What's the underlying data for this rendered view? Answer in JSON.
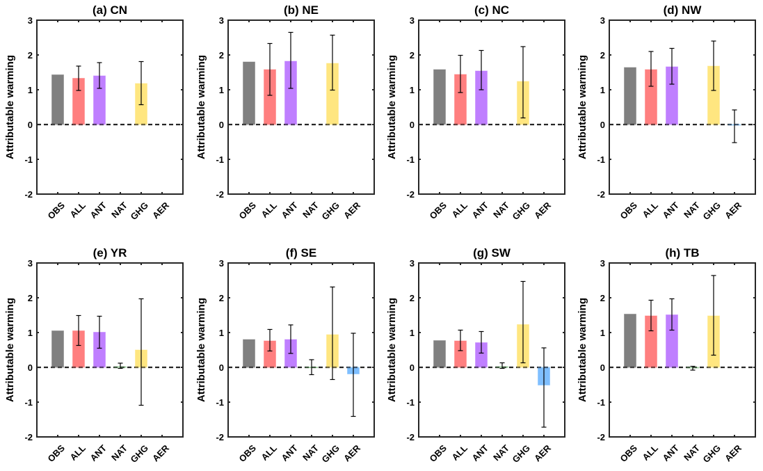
{
  "chart_data": [
    {
      "type": "bar",
      "title": "(a) CN",
      "ylabel": "Attributable warming",
      "xlabel": "",
      "categories": [
        "OBS",
        "ALL",
        "ANT",
        "NAT",
        "GHG",
        "AER"
      ],
      "values": [
        1.44,
        1.34,
        1.41,
        null,
        1.19,
        null
      ],
      "error_low": [
        null,
        0.98,
        1.04,
        null,
        0.57,
        null
      ],
      "error_high": [
        null,
        1.68,
        1.78,
        null,
        1.81,
        null
      ],
      "ylim": [
        -2,
        3
      ],
      "yticks": [
        "3",
        "2",
        "1",
        "0",
        "-1",
        "-2"
      ],
      "reference_line": 0
    },
    {
      "type": "bar",
      "title": "(b) NE",
      "ylabel": "Attributable warming",
      "xlabel": "",
      "categories": [
        "OBS",
        "ALL",
        "ANT",
        "NAT",
        "GHG",
        "AER"
      ],
      "values": [
        1.81,
        1.59,
        1.83,
        null,
        1.77,
        null
      ],
      "error_low": [
        null,
        0.84,
        1.04,
        null,
        0.99,
        null
      ],
      "error_high": [
        null,
        2.33,
        2.65,
        null,
        2.57,
        null
      ],
      "ylim": [
        -2,
        3
      ],
      "yticks": [
        "3",
        "2",
        "1",
        "0",
        "-1",
        "-2"
      ],
      "reference_line": 0
    },
    {
      "type": "bar",
      "title": "(c) NC",
      "ylabel": "Attributable warming",
      "xlabel": "",
      "categories": [
        "OBS",
        "ALL",
        "ANT",
        "NAT",
        "GHG",
        "AER"
      ],
      "values": [
        1.59,
        1.45,
        1.55,
        null,
        1.25,
        null
      ],
      "error_low": [
        null,
        0.92,
        1.0,
        null,
        0.19,
        null
      ],
      "error_high": [
        null,
        1.99,
        2.13,
        null,
        2.24,
        null
      ],
      "ylim": [
        -2,
        3
      ],
      "yticks": [
        "3",
        "2",
        "1",
        "0",
        "-1",
        "-2"
      ],
      "reference_line": 0
    },
    {
      "type": "bar",
      "title": "(d) NW",
      "ylabel": "Attributable warming",
      "xlabel": "",
      "categories": [
        "OBS",
        "ALL",
        "ANT",
        "NAT",
        "GHG",
        "AER"
      ],
      "values": [
        1.65,
        1.59,
        1.67,
        null,
        1.69,
        -0.03
      ],
      "error_low": [
        null,
        1.1,
        1.16,
        null,
        0.98,
        -0.52
      ],
      "error_high": [
        null,
        2.1,
        2.19,
        null,
        2.4,
        0.42
      ],
      "ylim": [
        -2,
        3
      ],
      "yticks": [
        "3",
        "2",
        "1",
        "0",
        "-1",
        "-2"
      ],
      "reference_line": 0
    },
    {
      "type": "bar",
      "title": "(e) YR",
      "ylabel": "Attributable warming",
      "xlabel": "",
      "categories": [
        "OBS",
        "ALL",
        "ANT",
        "NAT",
        "GHG",
        "AER"
      ],
      "values": [
        1.06,
        1.06,
        1.02,
        0.03,
        0.51,
        null
      ],
      "error_low": [
        null,
        0.63,
        0.55,
        -0.03,
        -1.09,
        null
      ],
      "error_high": [
        null,
        1.49,
        1.47,
        0.12,
        1.97,
        null
      ],
      "ylim": [
        -2,
        3
      ],
      "yticks": [
        "3",
        "2",
        "1",
        "0",
        "-1",
        "-2"
      ],
      "reference_line": 0
    },
    {
      "type": "bar",
      "title": "(f) SE",
      "ylabel": "Attributable warming",
      "xlabel": "",
      "categories": [
        "OBS",
        "ALL",
        "ANT",
        "NAT",
        "GHG",
        "AER"
      ],
      "values": [
        0.81,
        0.77,
        0.81,
        0.01,
        0.95,
        -0.2
      ],
      "error_low": [
        null,
        0.47,
        0.4,
        -0.21,
        -0.35,
        -1.41
      ],
      "error_high": [
        null,
        1.09,
        1.22,
        0.22,
        2.31,
        0.98
      ],
      "ylim": [
        -2,
        3
      ],
      "yticks": [
        "3",
        "2",
        "1",
        "0",
        "-1",
        "-2"
      ],
      "reference_line": 0
    },
    {
      "type": "bar",
      "title": "(g) SW",
      "ylabel": "Attributable warming",
      "xlabel": "",
      "categories": [
        "OBS",
        "ALL",
        "ANT",
        "NAT",
        "GHG",
        "AER"
      ],
      "values": [
        0.78,
        0.77,
        0.72,
        0.03,
        1.24,
        -0.52
      ],
      "error_low": [
        null,
        0.48,
        0.41,
        -0.03,
        0.13,
        -1.72
      ],
      "error_high": [
        null,
        1.07,
        1.03,
        0.13,
        2.47,
        0.56
      ],
      "ylim": [
        -2,
        3
      ],
      "yticks": [
        "3",
        "2",
        "1",
        "0",
        "-1",
        "-2"
      ],
      "reference_line": 0
    },
    {
      "type": "bar",
      "title": "(h) TB",
      "ylabel": "Attributable warming",
      "xlabel": "",
      "categories": [
        "OBS",
        "ALL",
        "ANT",
        "NAT",
        "GHG",
        "AER"
      ],
      "values": [
        1.54,
        1.49,
        1.52,
        -0.01,
        1.49,
        null
      ],
      "error_low": [
        null,
        1.05,
        1.07,
        -0.08,
        0.35,
        null
      ],
      "error_high": [
        null,
        1.93,
        1.97,
        0.03,
        2.64,
        null
      ],
      "ylim": [
        -2,
        3
      ],
      "yticks": [
        "3",
        "2",
        "1",
        "0",
        "-1",
        "-2"
      ],
      "reference_line": 0
    }
  ],
  "colors": {
    "OBS": "#808080",
    "ALL": "#ff7f7f",
    "ANT": "#bf7fff",
    "NAT": "#7fbf7f",
    "GHG": "#ffe680",
    "AER": "#7fbfff"
  }
}
